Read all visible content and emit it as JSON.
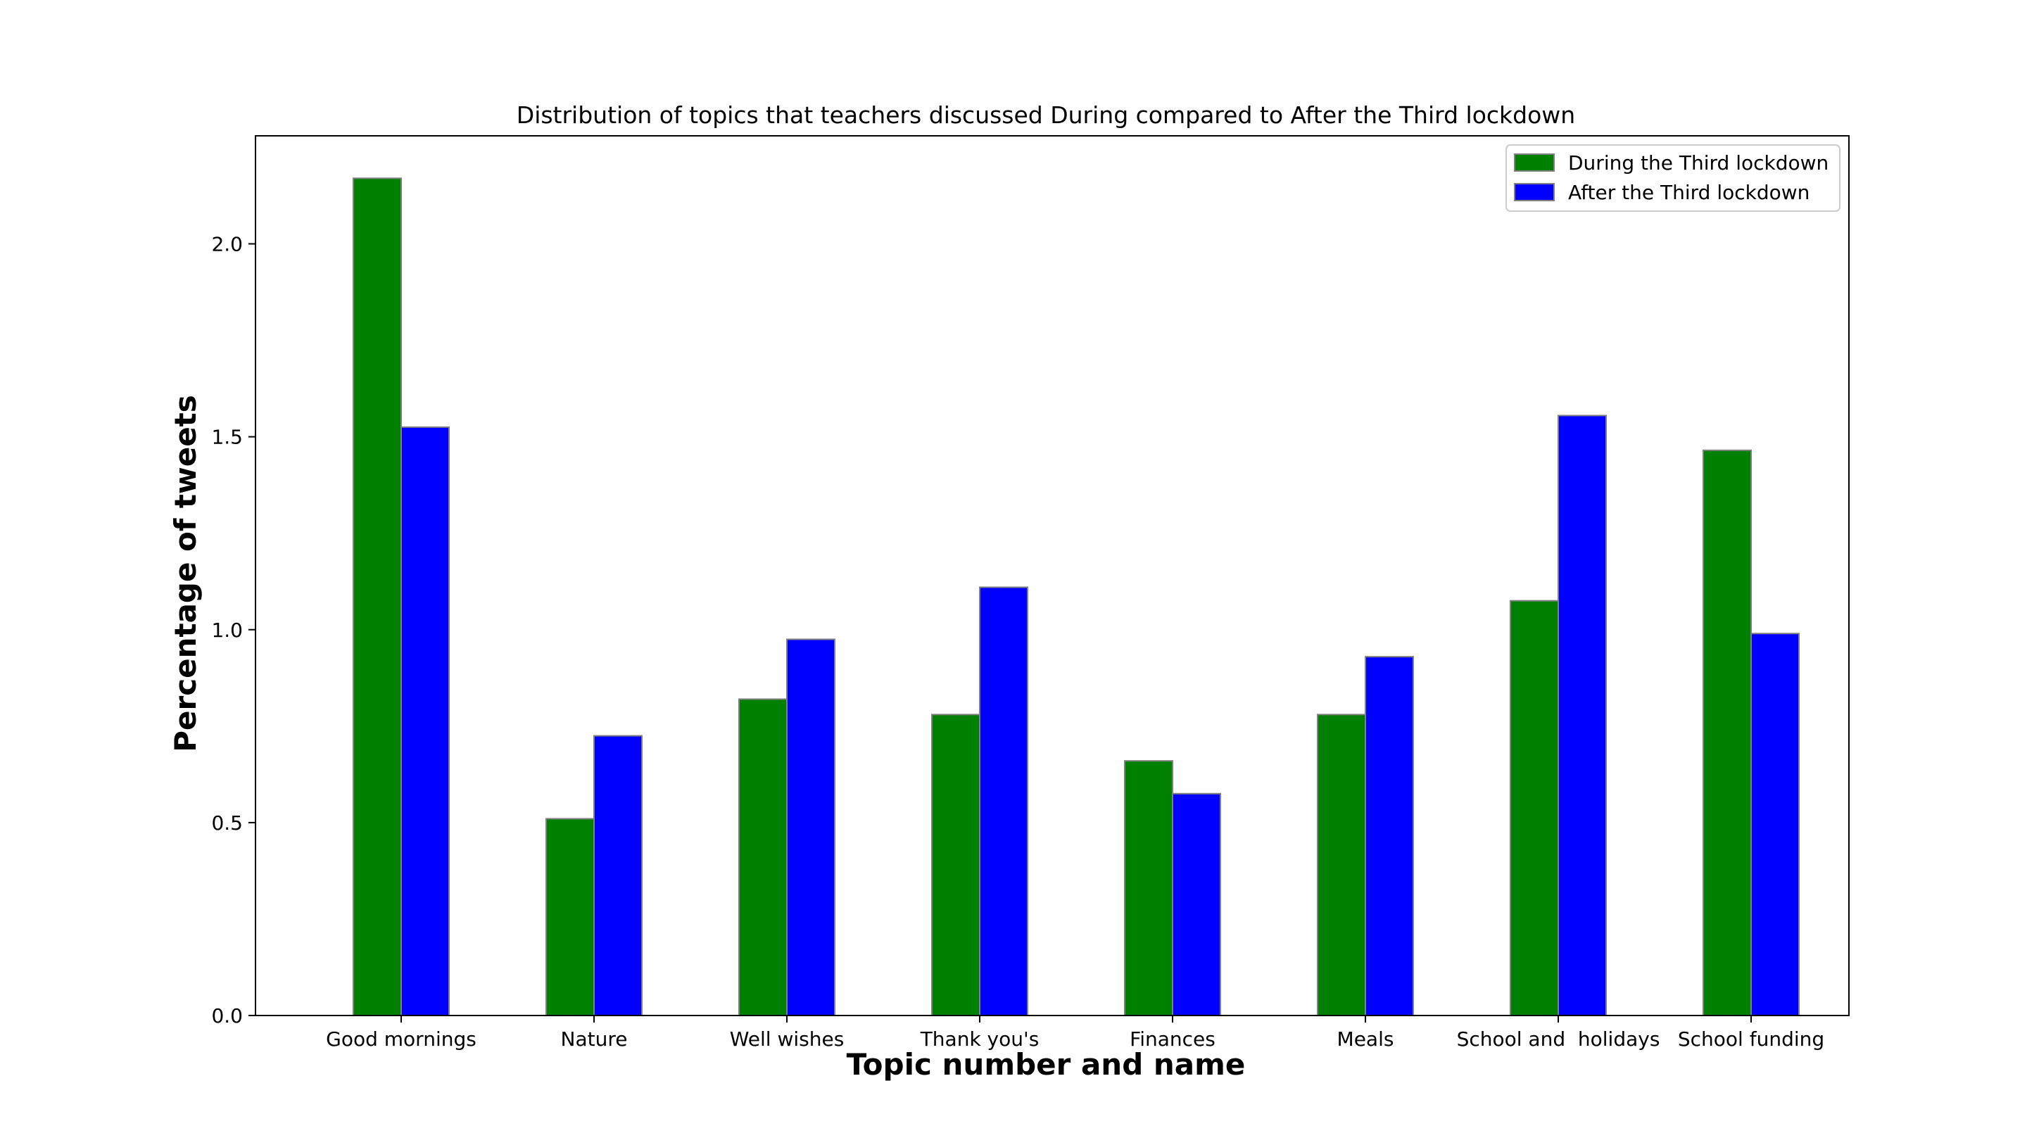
{
  "chart_data": {
    "type": "bar",
    "title": "Distribution of topics that teachers discussed During compared to After the Third lockdown",
    "xlabel": "Topic number and name",
    "ylabel": "Percentage of tweets",
    "categories": [
      "Good mornings",
      "Nature",
      "Well wishes",
      "Thank you's",
      "Finances",
      "Meals",
      "School and  holidays",
      "School funding"
    ],
    "series": [
      {
        "name": "During the Third lockdown",
        "color": "#008000",
        "values": [
          2.17,
          0.51,
          0.82,
          0.78,
          0.66,
          0.78,
          1.075,
          1.465
        ]
      },
      {
        "name": "After the Third lockdown",
        "color": "#0000ff",
        "values": [
          1.525,
          0.725,
          0.975,
          1.11,
          0.575,
          0.93,
          1.555,
          0.99
        ]
      }
    ],
    "ylim": [
      0,
      2.28
    ],
    "yticks": [
      0.0,
      0.5,
      1.0,
      1.5,
      2.0
    ],
    "ytick_labels": [
      "0.0",
      "0.5",
      "1.0",
      "1.5",
      "2.0"
    ],
    "grid": false,
    "legend_position": "top-right",
    "bar_edge_color": "#808080"
  }
}
